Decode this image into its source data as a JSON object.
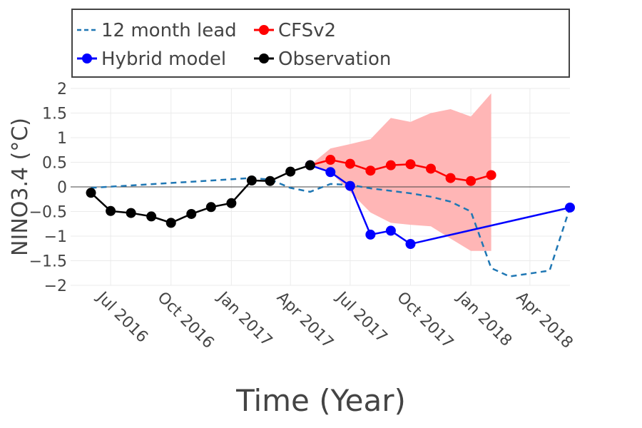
{
  "chart_data": {
    "type": "line",
    "title": "",
    "xlabel": "Time (Year)",
    "ylabel": "NINO3.4 (°C)",
    "xlim": [
      "2016-05-01",
      "2018-06-01"
    ],
    "ylim": [
      -2,
      2
    ],
    "x_ticks": [
      "2016-07-01",
      "2016-10-01",
      "2017-01-01",
      "2017-04-01",
      "2017-07-01",
      "2017-10-01",
      "2018-01-01",
      "2018-04-01"
    ],
    "x_tick_labels": [
      "Jul 2016",
      "Oct 2016",
      "Jan 2017",
      "Apr 2017",
      "Jul 2017",
      "Oct 2017",
      "Jan 2018",
      "Apr 2018"
    ],
    "y_ticks": [
      2,
      1.5,
      1,
      0.5,
      0,
      -0.5,
      -1,
      -1.5,
      -2
    ],
    "y_tick_labels": [
      "2",
      "1.5",
      "1",
      "0.5",
      "0",
      "−0.5",
      "−1",
      "−1.5",
      "−2"
    ],
    "grid": true,
    "legend_position": "top",
    "series": [
      {
        "name": "12 month lead",
        "style": "dashed",
        "color": "#1f77b4",
        "x": [
          "2016-06-01",
          "2017-02-01",
          "2017-03-01",
          "2017-04-01",
          "2017-05-01",
          "2017-06-01",
          "2017-07-01",
          "2017-08-01",
          "2017-09-01",
          "2017-10-01",
          "2017-11-01",
          "2017-12-01",
          "2018-01-01",
          "2018-02-01",
          "2018-03-01",
          "2018-04-01",
          "2018-05-01",
          "2018-06-01"
        ],
        "y": [
          -0.02,
          0.18,
          0.15,
          -0.02,
          -0.1,
          0.06,
          0.04,
          -0.03,
          -0.08,
          -0.13,
          -0.2,
          -0.3,
          -0.5,
          -1.65,
          -1.82,
          -1.76,
          -1.7,
          -0.42
        ]
      },
      {
        "name": "CFSv2",
        "style": "line-markers",
        "color": "#ff0000",
        "x": [
          "2017-05-01",
          "2017-06-01",
          "2017-07-01",
          "2017-08-01",
          "2017-09-01",
          "2017-10-01",
          "2017-11-01",
          "2017-12-01",
          "2018-01-01",
          "2018-02-01"
        ],
        "y": [
          0.44,
          0.55,
          0.47,
          0.33,
          0.44,
          0.46,
          0.37,
          0.18,
          0.12,
          0.24
        ]
      },
      {
        "name": "Hybrid model",
        "style": "line-markers",
        "color": "#0000ff",
        "x": [
          "2017-05-01",
          "2017-06-01",
          "2017-07-01",
          "2017-08-01",
          "2017-09-01",
          "2017-10-01",
          "2018-06-01"
        ],
        "y": [
          0.44,
          0.3,
          0.02,
          -0.97,
          -0.89,
          -1.16,
          -0.42
        ]
      },
      {
        "name": "Observation",
        "style": "line-markers",
        "color": "#000000",
        "x": [
          "2016-06-01",
          "2016-07-01",
          "2016-08-01",
          "2016-09-01",
          "2016-10-01",
          "2016-11-01",
          "2016-12-01",
          "2017-01-01",
          "2017-02-01",
          "2017-03-01",
          "2017-04-01",
          "2017-05-01"
        ],
        "y": [
          -0.12,
          -0.49,
          -0.53,
          -0.6,
          -0.73,
          -0.55,
          -0.41,
          -0.33,
          0.13,
          0.12,
          0.31,
          0.44
        ]
      }
    ],
    "bands": [
      {
        "name": "CFSv2 spread",
        "color": "#ffb6b6",
        "x": [
          "2017-05-01",
          "2017-06-01",
          "2017-07-01",
          "2017-08-01",
          "2017-09-01",
          "2017-10-01",
          "2017-11-01",
          "2017-12-01",
          "2018-01-01",
          "2018-02-01"
        ],
        "upper": [
          0.44,
          0.78,
          0.87,
          0.97,
          1.4,
          1.32,
          1.5,
          1.58,
          1.43,
          1.9
        ],
        "lower": [
          0.44,
          0.3,
          -0.1,
          -0.52,
          -0.73,
          -0.77,
          -0.8,
          -1.05,
          -1.3,
          -1.3
        ]
      }
    ]
  }
}
